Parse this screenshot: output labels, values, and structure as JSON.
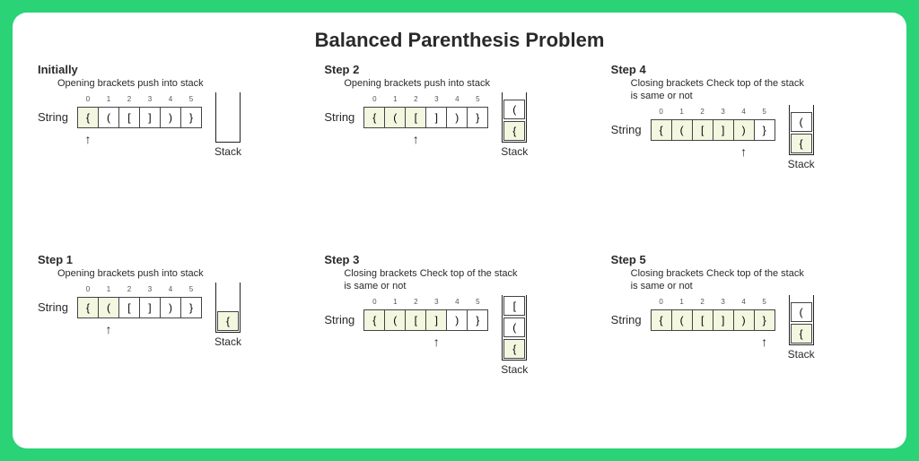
{
  "title": "Balanced Parenthesis Problem",
  "string_label": "String",
  "stack_label": "Stack",
  "tokens": [
    "{",
    "(",
    "[",
    "]",
    ")",
    "}"
  ],
  "indices": [
    "0",
    "1",
    "2",
    "3",
    "4",
    "5"
  ],
  "colors": {
    "page_bg": "#2ad376",
    "card_bg": "#ffffff",
    "highlight": "#f3f7e0",
    "border": "#444444",
    "text": "#2a2a2a"
  },
  "steps": [
    {
      "title": "Initially",
      "caption": "Opening brackets push into stack",
      "pointer": 0,
      "highlights": [
        0
      ],
      "stack": []
    },
    {
      "title": "Step 2",
      "caption": "Opening brackets push into stack",
      "pointer": 2,
      "highlights": [
        0,
        1,
        2
      ],
      "stack": [
        "(",
        "{"
      ]
    },
    {
      "title": "Step 4",
      "caption": "Closing brackets Check top of the stack is same or not",
      "pointer": 4,
      "highlights": [
        0,
        1,
        2,
        3,
        4
      ],
      "stack": [
        "(",
        "{"
      ]
    },
    {
      "title": "Step 1",
      "caption": "Opening brackets push into stack",
      "pointer": 1,
      "highlights": [
        0,
        1
      ],
      "stack": [
        "{"
      ]
    },
    {
      "title": "Step 3",
      "caption": "Closing brackets Check top of the stack is same or not",
      "pointer": 3,
      "highlights": [
        0,
        1,
        2,
        3
      ],
      "stack": [
        "[",
        "(",
        "{"
      ]
    },
    {
      "title": "Step 5",
      "caption": "Closing brackets Check top of the stack is same or not",
      "pointer": 5,
      "highlights": [
        0,
        1,
        2,
        3,
        4,
        5
      ],
      "stack": [
        "(",
        "{"
      ]
    }
  ]
}
